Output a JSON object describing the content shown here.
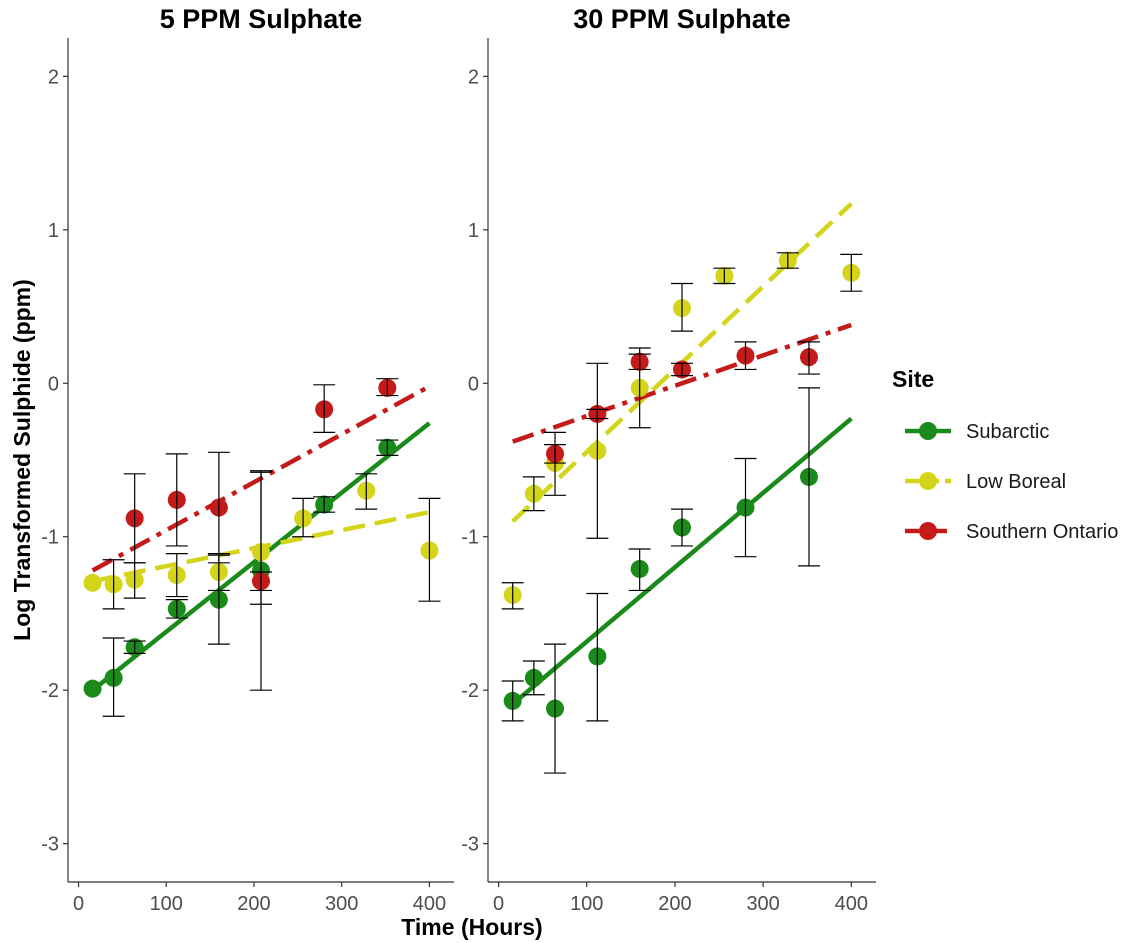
{
  "chart_data": {
    "type": "scatter",
    "x_label": "Time (Hours)",
    "y_label": "Log Transformed Sulphide (ppm)",
    "x_ticks": [
      0,
      100,
      200,
      300,
      400
    ],
    "y_ticks": [
      -3,
      -2,
      -1,
      0,
      1,
      2
    ],
    "x_range": [
      -12,
      428
    ],
    "y_range": [
      -3.25,
      2.25
    ],
    "grid": false,
    "legend": {
      "title": "Site",
      "position": "right",
      "entries": [
        {
          "label": "Subarctic",
          "color": "#1a8a1a",
          "line": "solid"
        },
        {
          "label": "Low Boreal",
          "color": "#d4d41a",
          "line": "dashed"
        },
        {
          "label": "Southern Ontario",
          "color": "#c41a1a",
          "line": "dotdash"
        }
      ]
    },
    "panels": [
      {
        "title": "5 PPM Sulphate",
        "series": [
          {
            "name": "Subarctic",
            "points": [
              {
                "x": 16,
                "y": -1.99,
                "lo": -1.99,
                "hi": -1.99
              },
              {
                "x": 40,
                "y": -1.92,
                "lo": -2.17,
                "hi": -1.66
              },
              {
                "x": 64,
                "y": -1.72,
                "lo": -1.76,
                "hi": -1.68
              },
              {
                "x": 112,
                "y": -1.47,
                "lo": -1.53,
                "hi": -1.41
              },
              {
                "x": 160,
                "y": -1.41,
                "lo": -1.7,
                "hi": -1.12
              },
              {
                "x": 208,
                "y": -1.22,
                "lo": -2.0,
                "hi": -0.57
              },
              {
                "x": 280,
                "y": -0.79,
                "lo": -0.84,
                "hi": -0.74
              },
              {
                "x": 352,
                "y": -0.42,
                "lo": -0.47,
                "hi": -0.37
              }
            ],
            "trend": [
              [
                16,
                -2.0
              ],
              [
                400,
                -0.26
              ]
            ]
          },
          {
            "name": "Low Boreal",
            "points": [
              {
                "x": 16,
                "y": -1.3,
                "lo": -1.3,
                "hi": -1.3
              },
              {
                "x": 40,
                "y": -1.31,
                "lo": -1.47,
                "hi": -1.15
              },
              {
                "x": 64,
                "y": -1.28,
                "lo": -1.4,
                "hi": -1.17
              },
              {
                "x": 112,
                "y": -1.25,
                "lo": -1.39,
                "hi": -1.11
              },
              {
                "x": 160,
                "y": -1.23,
                "lo": -1.35,
                "hi": -1.11
              },
              {
                "x": 208,
                "y": -1.1,
                "lo": -1.44,
                "hi": -0.58
              },
              {
                "x": 256,
                "y": -0.88,
                "lo": -1.0,
                "hi": -0.75
              },
              {
                "x": 328,
                "y": -0.7,
                "lo": -0.82,
                "hi": -0.59
              },
              {
                "x": 400,
                "y": -1.09,
                "lo": -1.42,
                "hi": -0.75
              }
            ],
            "trend": [
              [
                16,
                -1.29
              ],
              [
                400,
                -0.84
              ]
            ]
          },
          {
            "name": "Southern Ontario",
            "points": [
              {
                "x": 64,
                "y": -0.88,
                "lo": -1.17,
                "hi": -0.59
              },
              {
                "x": 112,
                "y": -0.76,
                "lo": -1.06,
                "hi": -0.46
              },
              {
                "x": 160,
                "y": -0.81,
                "lo": -1.17,
                "hi": -0.45
              },
              {
                "x": 208,
                "y": -1.29,
                "lo": -1.35,
                "hi": -1.23
              },
              {
                "x": 280,
                "y": -0.17,
                "lo": -0.32,
                "hi": -0.01
              },
              {
                "x": 352,
                "y": -0.03,
                "lo": -0.08,
                "hi": 0.03
              }
            ],
            "trend": [
              [
                16,
                -1.22
              ],
              [
                400,
                -0.02
              ]
            ]
          }
        ]
      },
      {
        "title": "30 PPM Sulphate",
        "series": [
          {
            "name": "Subarctic",
            "points": [
              {
                "x": 16,
                "y": -2.07,
                "lo": -2.2,
                "hi": -1.94
              },
              {
                "x": 40,
                "y": -1.92,
                "lo": -2.03,
                "hi": -1.81
              },
              {
                "x": 64,
                "y": -2.12,
                "lo": -2.54,
                "hi": -1.7
              },
              {
                "x": 112,
                "y": -1.78,
                "lo": -2.2,
                "hi": -1.37
              },
              {
                "x": 160,
                "y": -1.21,
                "lo": -1.35,
                "hi": -1.08
              },
              {
                "x": 208,
                "y": -0.94,
                "lo": -1.06,
                "hi": -0.82
              },
              {
                "x": 280,
                "y": -0.81,
                "lo": -1.13,
                "hi": -0.49
              },
              {
                "x": 352,
                "y": -0.61,
                "lo": -1.19,
                "hi": -0.03
              }
            ],
            "trend": [
              [
                16,
                -2.09
              ],
              [
                400,
                -0.23
              ]
            ]
          },
          {
            "name": "Low Boreal",
            "points": [
              {
                "x": 16,
                "y": -1.38,
                "lo": -1.47,
                "hi": -1.3
              },
              {
                "x": 40,
                "y": -0.72,
                "lo": -0.83,
                "hi": -0.61
              },
              {
                "x": 64,
                "y": -0.52,
                "lo": -0.73,
                "hi": -0.32
              },
              {
                "x": 112,
                "y": -0.44,
                "lo": -1.01,
                "hi": 0.13
              },
              {
                "x": 160,
                "y": -0.03,
                "lo": -0.29,
                "hi": 0.23
              },
              {
                "x": 208,
                "y": 0.49,
                "lo": 0.34,
                "hi": 0.65
              },
              {
                "x": 256,
                "y": 0.7,
                "lo": 0.65,
                "hi": 0.75
              },
              {
                "x": 328,
                "y": 0.8,
                "lo": 0.75,
                "hi": 0.85
              },
              {
                "x": 400,
                "y": 0.72,
                "lo": 0.6,
                "hi": 0.84
              }
            ],
            "trend": [
              [
                16,
                -0.9
              ],
              [
                400,
                1.17
              ]
            ]
          },
          {
            "name": "Southern Ontario",
            "points": [
              {
                "x": 64,
                "y": -0.46,
                "lo": -0.52,
                "hi": -0.4
              },
              {
                "x": 112,
                "y": -0.2,
                "lo": -0.23,
                "hi": -0.17
              },
              {
                "x": 160,
                "y": 0.14,
                "lo": 0.09,
                "hi": 0.19
              },
              {
                "x": 208,
                "y": 0.09,
                "lo": 0.05,
                "hi": 0.13
              },
              {
                "x": 280,
                "y": 0.18,
                "lo": 0.09,
                "hi": 0.27
              },
              {
                "x": 352,
                "y": 0.17,
                "lo": 0.06,
                "hi": 0.27
              }
            ],
            "trend": [
              [
                16,
                -0.38
              ],
              [
                400,
                0.38
              ]
            ]
          }
        ]
      }
    ]
  }
}
